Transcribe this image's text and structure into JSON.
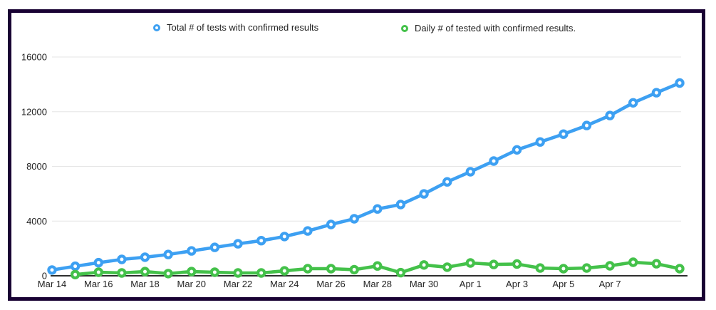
{
  "frame": {
    "border_color": "#190233",
    "background": "#ffffff"
  },
  "palette": {
    "total_series": "#3da0f2",
    "daily_series": "#44c14a",
    "gridline": "#e6e6e6",
    "axis_line": "#111111",
    "label_text": "#222222"
  },
  "chart_data": {
    "type": "line",
    "title": "",
    "xlabel": "",
    "ylabel": "",
    "x": [
      "Mar 14",
      "Mar 15",
      "Mar 16",
      "Mar 17",
      "Mar 18",
      "Mar 19",
      "Mar 20",
      "Mar 21",
      "Mar 22",
      "Mar 23",
      "Mar 24",
      "Mar 25",
      "Mar 26",
      "Mar 27",
      "Mar 28",
      "Mar 29",
      "Mar 30",
      "Mar 31",
      "Apr 1",
      "Apr 2",
      "Apr 3",
      "Apr 4",
      "Apr 5",
      "Apr 6",
      "Apr 7",
      "Apr 8",
      "Apr 9",
      "Apr 10"
    ],
    "x_axis_labels_shown": [
      "Mar 14",
      "Mar 16",
      "Mar 18",
      "Mar 20",
      "Mar 22",
      "Mar 24",
      "Mar 26",
      "Mar 28",
      "Mar 30",
      "Apr 1",
      "Apr 3",
      "Apr 5",
      "Apr 7"
    ],
    "ylim": [
      0,
      16000
    ],
    "yticks": [
      0,
      4000,
      8000,
      12000,
      16000
    ],
    "ytick_labels": [
      "0",
      "4000",
      "8000",
      "12000",
      "16000"
    ],
    "grid": "horizontal",
    "legend_position": "top",
    "marker": "donut-circle",
    "series": [
      {
        "name": "Total # of tests with confirmed results",
        "color": "#3da0f2",
        "values": [
          420,
          700,
          960,
          1200,
          1360,
          1560,
          1820,
          2080,
          2340,
          2570,
          2870,
          3280,
          3750,
          4170,
          4890,
          5210,
          5990,
          6870,
          7610,
          8390,
          9210,
          9790,
          10360,
          10990,
          11720,
          12650,
          13390,
          14100
        ]
      },
      {
        "name": "Daily # of tested with confirmed results.",
        "color": "#44c14a",
        "values": [
          null,
          90,
          260,
          210,
          310,
          160,
          310,
          260,
          210,
          210,
          360,
          520,
          520,
          450,
          720,
          230,
          790,
          630,
          940,
          830,
          860,
          570,
          520,
          570,
          730,
          990,
          880,
          520
        ]
      }
    ]
  }
}
